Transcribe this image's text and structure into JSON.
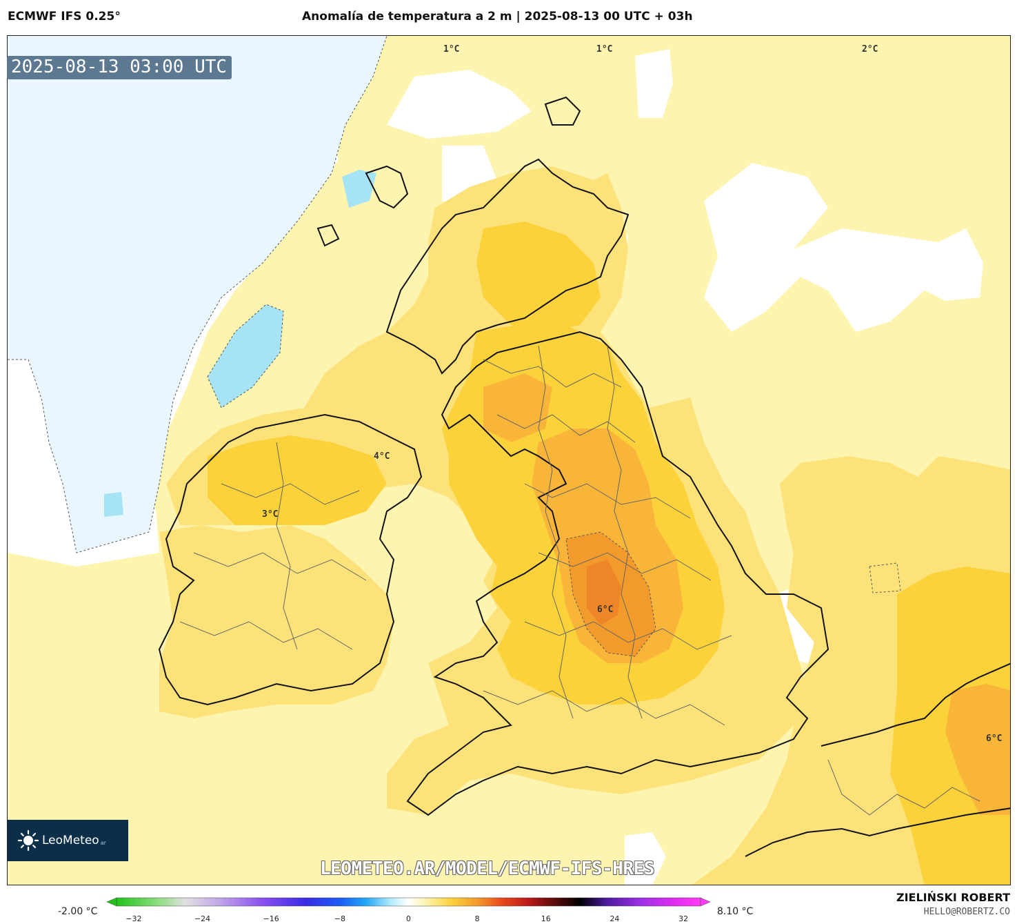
{
  "header": {
    "model": "ECMWF IFS 0.25°",
    "title": "Anomalía de temperatura a 2 m | 2025-08-13 00 UTC + 03h"
  },
  "map": {
    "timestamp": "2025-08-13 03:00 UTC",
    "contour_labels": [
      "1°C",
      "1°C",
      "2°C",
      "4°C",
      "3°C",
      "6°C",
      "6°C"
    ],
    "palette": {
      "sea_pale": "#fdf4b0",
      "land_yellow": "#fde27a",
      "warm_yellow": "#fcd23a",
      "orange": "#f9b53a",
      "deep_orange": "#f39a2c",
      "peak": "#ee8526",
      "cold_pale": "#eaf6fd",
      "cold_cyan": "#a6e3f5",
      "coast": "#111111",
      "borders": "#666666"
    }
  },
  "branding": {
    "logo_name": "LeoMeteo",
    "logo_suffix": "ar",
    "watermark": "LEOMETEO.AR/MODEL/ECMWF-IFS-HRES",
    "author": "ZIELIŃSKI ROBERT",
    "email": "HELLO@ROBERTZ.CO"
  },
  "colorbar": {
    "min_label": "-2.00 °C",
    "max_label": "8.10 °C",
    "ticks": [
      "−32",
      "−24",
      "−16",
      "−8",
      "0",
      "8",
      "16",
      "24",
      "32"
    ],
    "range": [
      -34,
      34
    ],
    "stops": [
      {
        "v": -34,
        "c": "#22c21b"
      },
      {
        "v": -29,
        "c": "#8fdf84"
      },
      {
        "v": -26,
        "c": "#e0e0e0"
      },
      {
        "v": -22,
        "c": "#c0a6e8"
      },
      {
        "v": -17,
        "c": "#8a4ff0"
      },
      {
        "v": -12,
        "c": "#3b2ce3"
      },
      {
        "v": -8,
        "c": "#1c5cf3"
      },
      {
        "v": -5,
        "c": "#21a6f6"
      },
      {
        "v": -2,
        "c": "#b6ecfb"
      },
      {
        "v": 0,
        "c": "#ffffff"
      },
      {
        "v": 2,
        "c": "#fdf4b0"
      },
      {
        "v": 5,
        "c": "#fcd23a"
      },
      {
        "v": 8,
        "c": "#f39a2c"
      },
      {
        "v": 11,
        "c": "#e8461c"
      },
      {
        "v": 14,
        "c": "#b81919"
      },
      {
        "v": 17,
        "c": "#5a0b0b"
      },
      {
        "v": 20,
        "c": "#000000"
      },
      {
        "v": 23,
        "c": "#4a1a9e"
      },
      {
        "v": 27,
        "c": "#9c2fe6"
      },
      {
        "v": 31,
        "c": "#e02cf0"
      },
      {
        "v": 34,
        "c": "#ff3cf5"
      }
    ]
  }
}
